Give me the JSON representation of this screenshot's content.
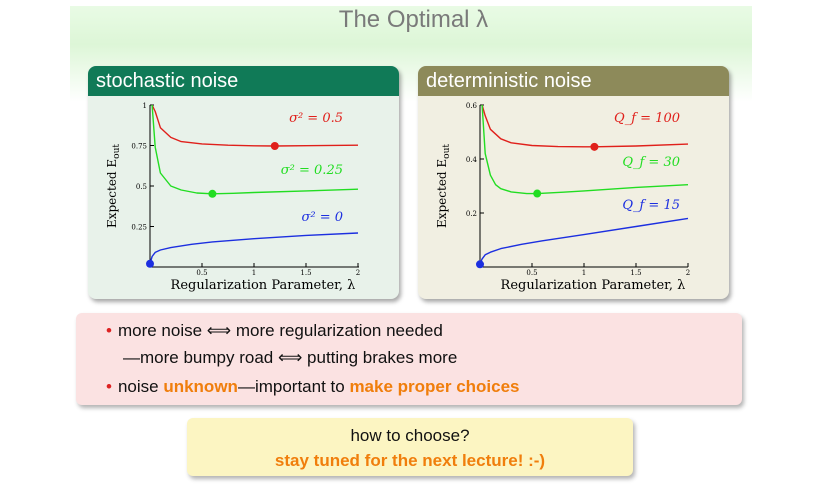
{
  "title": "The Optimal λ",
  "panels": {
    "stochastic": {
      "header": "stochastic noise",
      "ylabel_main": "Expected E",
      "ylabel_sub": "out",
      "xlabel": "Regularization Parameter, λ",
      "yticks": [
        "1",
        "0.75",
        "0.5",
        "0.25"
      ],
      "xticks": [
        "0.5",
        "1",
        "1.5",
        "2"
      ],
      "series_labels": [
        "σ² = 0.5",
        "σ² = 0.25",
        "σ² = 0"
      ],
      "colors": [
        "#e0201b",
        "#22dd22",
        "#1c2fe0"
      ]
    },
    "deterministic": {
      "header": "deterministic noise",
      "ylabel_main": "Expected E",
      "ylabel_sub": "out",
      "xlabel": "Regularization Parameter, λ",
      "yticks": [
        "0.6",
        "0.4",
        "0.2"
      ],
      "xticks": [
        "0.5",
        "1",
        "1.5",
        "2"
      ],
      "series_labels": [
        "Q_f = 100",
        "Q_f = 30",
        "Q_f = 15"
      ],
      "colors": [
        "#e0201b",
        "#22dd22",
        "#1c2fe0"
      ]
    }
  },
  "notes": {
    "line1": "more noise ⟺ more regularization needed",
    "line2": "—more bumpy road ⟺ putting brakes more",
    "line3_a": "noise ",
    "line3_b": "unknown",
    "line3_c": "—important to ",
    "line3_d": "make proper choices"
  },
  "callout": {
    "question": "how to choose?",
    "answer": "stay tuned for the next lecture! :-)"
  },
  "chart_data": [
    {
      "type": "line",
      "title": "stochastic noise",
      "xlabel": "Regularization Parameter, λ",
      "ylabel": "Expected E_out",
      "xlim": [
        0,
        2
      ],
      "ylim": [
        0,
        1
      ],
      "series": [
        {
          "name": "σ² = 0.5",
          "x": [
            0.02,
            0.05,
            0.1,
            0.2,
            0.3,
            0.5,
            0.75,
            1.0,
            1.2,
            1.5,
            2.0
          ],
          "values": [
            1.0,
            0.96,
            0.86,
            0.8,
            0.774,
            0.76,
            0.752,
            0.748,
            0.747,
            0.749,
            0.752
          ]
        },
        {
          "name": "σ² = 0.25",
          "x": [
            0.02,
            0.05,
            0.1,
            0.2,
            0.3,
            0.45,
            0.6,
            0.8,
            1.0,
            1.5,
            2.0
          ],
          "values": [
            1.0,
            0.74,
            0.58,
            0.5,
            0.475,
            0.457,
            0.452,
            0.455,
            0.46,
            0.47,
            0.48
          ]
        },
        {
          "name": "σ² = 0",
          "x": [
            0,
            0.02,
            0.05,
            0.1,
            0.2,
            0.4,
            0.6,
            1.0,
            1.5,
            2.0
          ],
          "values": [
            0.02,
            0.065,
            0.09,
            0.105,
            0.12,
            0.14,
            0.155,
            0.175,
            0.195,
            0.21
          ]
        }
      ],
      "optima": [
        {
          "x": 1.2,
          "y": 0.747
        },
        {
          "x": 0.6,
          "y": 0.452
        },
        {
          "x": 0,
          "y": 0.02
        }
      ]
    },
    {
      "type": "line",
      "title": "deterministic noise",
      "xlabel": "Regularization Parameter, λ",
      "ylabel": "Expected E_out",
      "xlim": [
        0,
        2
      ],
      "ylim": [
        0,
        0.6
      ],
      "series": [
        {
          "name": "Q_f = 100",
          "x": [
            0.02,
            0.05,
            0.1,
            0.2,
            0.3,
            0.5,
            0.75,
            1.0,
            1.1,
            1.5,
            2.0
          ],
          "values": [
            0.6,
            0.56,
            0.51,
            0.475,
            0.46,
            0.45,
            0.446,
            0.445,
            0.445,
            0.448,
            0.455
          ]
        },
        {
          "name": "Q_f = 30",
          "x": [
            0.02,
            0.05,
            0.1,
            0.15,
            0.2,
            0.3,
            0.45,
            0.55,
            0.8,
            1.0,
            1.5,
            2.0
          ],
          "values": [
            0.6,
            0.42,
            0.34,
            0.305,
            0.29,
            0.278,
            0.272,
            0.272,
            0.277,
            0.282,
            0.295,
            0.305
          ]
        },
        {
          "name": "Q_f = 15",
          "x": [
            0,
            0.02,
            0.05,
            0.1,
            0.2,
            0.4,
            0.6,
            1.0,
            1.5,
            2.0
          ],
          "values": [
            0.01,
            0.03,
            0.045,
            0.055,
            0.068,
            0.084,
            0.097,
            0.12,
            0.15,
            0.18
          ]
        }
      ],
      "optima": [
        {
          "x": 1.1,
          "y": 0.445
        },
        {
          "x": 0.55,
          "y": 0.272
        },
        {
          "x": 0,
          "y": 0.01
        }
      ]
    }
  ]
}
